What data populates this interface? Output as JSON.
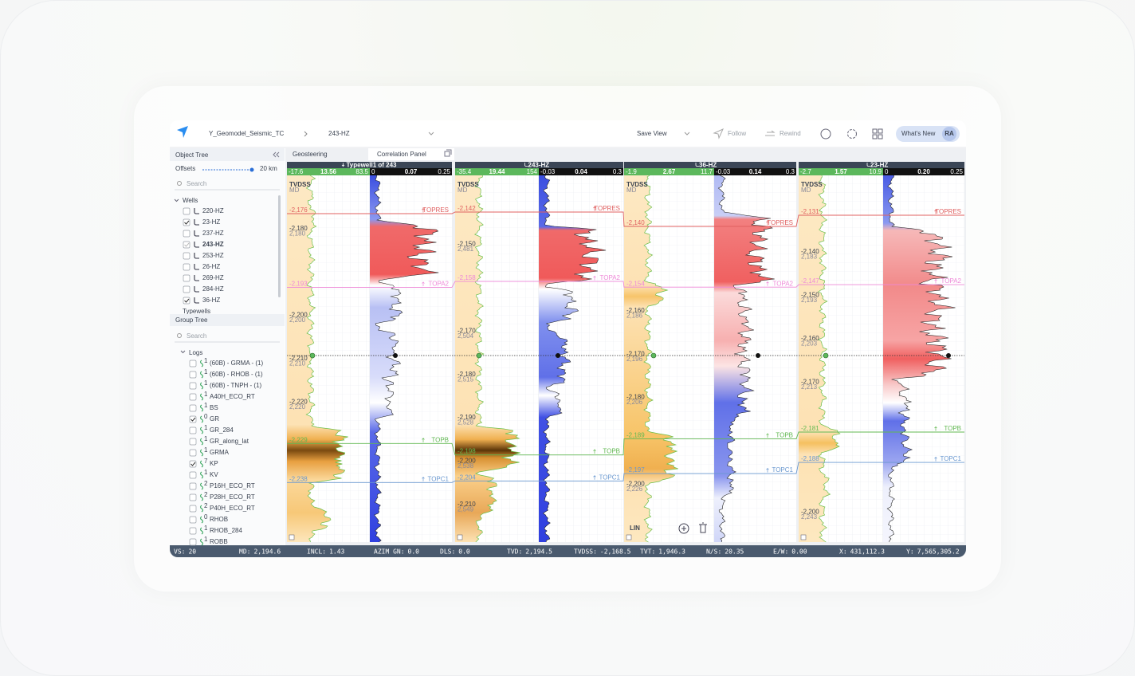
{
  "header": {
    "project": "Y_Geomodel_Seismic_TC",
    "well": "243-HZ",
    "save_view": "Save View",
    "follow": "Follow",
    "rewind": "Rewind",
    "whats_new": "What's New",
    "avatar": "RA"
  },
  "sidebar": {
    "object_tree": "Object Tree",
    "offsets": "Offsets",
    "offsets_value": "20 km",
    "search": "Search",
    "wells_group": "Wells",
    "wells": [
      {
        "name": "220-HZ",
        "checked": false,
        "selected": false
      },
      {
        "name": "23-HZ",
        "checked": true,
        "selected": false
      },
      {
        "name": "237-HZ",
        "checked": false,
        "selected": false
      },
      {
        "name": "243-HZ",
        "checked": true,
        "selected": true
      },
      {
        "name": "253-HZ",
        "checked": false,
        "selected": false
      },
      {
        "name": "26-HZ",
        "checked": false,
        "selected": false
      },
      {
        "name": "269-HZ",
        "checked": false,
        "selected": false
      },
      {
        "name": "284-HZ",
        "checked": false,
        "selected": false
      },
      {
        "name": "36-HZ",
        "checked": true,
        "selected": false
      }
    ],
    "typewells_group": "Typewells",
    "group_tree": "Group Tree",
    "group_search": "Search",
    "logs_group": "Logs",
    "logs": [
      {
        "name": "(60B) - GRMA - (1)",
        "count": "1",
        "checked": false
      },
      {
        "name": "(60B) - RHOB - (1)",
        "count": "1",
        "checked": false
      },
      {
        "name": "(60B) - TNPH - (1)",
        "count": "1",
        "checked": false
      },
      {
        "name": "A40H_ECO_RT",
        "count": "1",
        "checked": false
      },
      {
        "name": "BS",
        "count": "1",
        "checked": false
      },
      {
        "name": "GR",
        "count": "0",
        "checked": true
      },
      {
        "name": "GR_284",
        "count": "1",
        "checked": false
      },
      {
        "name": "GR_along_lat",
        "count": "1",
        "checked": false
      },
      {
        "name": "GRMA",
        "count": "1",
        "checked": false
      },
      {
        "name": "KP",
        "count": "7",
        "checked": true
      },
      {
        "name": "KV",
        "count": "1",
        "checked": false
      },
      {
        "name": "P16H_ECO_RT",
        "count": "2",
        "checked": false
      },
      {
        "name": "P28H_ECO_RT",
        "count": "2",
        "checked": false
      },
      {
        "name": "P40H_ECO_RT",
        "count": "2",
        "checked": false
      },
      {
        "name": "RHOB",
        "count": "0",
        "checked": false
      },
      {
        "name": "RHOB_284",
        "count": "1",
        "checked": false
      },
      {
        "name": "ROBB",
        "count": "1",
        "checked": false
      }
    ]
  },
  "tabs": [
    "Geosteering",
    "Correlation Panel"
  ],
  "track_labels": {
    "tvdss": "TVDSS",
    "md": "MD"
  },
  "tops": [
    {
      "name": "TOPRES",
      "color": "#e06060"
    },
    {
      "name": "TOPA2",
      "color": "#ee88d8"
    },
    {
      "name": "TOPB",
      "color": "#62b852"
    },
    {
      "name": "TOPC1",
      "color": "#6a98d0"
    }
  ],
  "panels": [
    {
      "title": "Typewell1 of 243",
      "gr_scale": [
        "-17.6",
        "13.56",
        "83.5"
      ],
      "res_scale": [
        "0",
        "0.07",
        "0.25"
      ],
      "top_depths": [
        {
          "value": -2176,
          "label": "-2,176"
        },
        {
          "value": -2193,
          "label": "-2,193"
        },
        {
          "value": -2229,
          "label": "-2,229"
        },
        {
          "value": -2238,
          "label": "-2,238"
        }
      ],
      "depths": [
        {
          "tvdss": {
            "value": -2180,
            "label": "-2,180"
          },
          "md": "2,180"
        },
        {
          "tvdss": {
            "value": -2200,
            "label": "-2,200"
          },
          "md": "2,200"
        },
        {
          "tvdss": {
            "value": -2210,
            "label": "-2,210"
          },
          "md": "2,210"
        },
        {
          "tvdss": {
            "value": -2220,
            "label": "-2,220"
          },
          "md": "2,220"
        }
      ]
    },
    {
      "title": "243-HZ",
      "gr_scale": [
        "-35.4",
        "19.44",
        "154"
      ],
      "res_scale": [
        "-0.03",
        "0.04",
        "0.3"
      ],
      "top_depths": [
        {
          "value": -2142,
          "label": "-2,142"
        },
        {
          "value": -2158,
          "label": "-2,158"
        },
        {
          "value": -2198,
          "label": "-2,198"
        },
        {
          "value": -2204,
          "label": "-2,204"
        }
      ],
      "depths": [
        {
          "tvdss": {
            "value": -2150,
            "label": "-2,150"
          },
          "md": "2,481"
        },
        {
          "tvdss": {
            "value": -2170,
            "label": "-2,170"
          },
          "md": "2,504"
        },
        {
          "tvdss": {
            "value": -2180,
            "label": "-2,180"
          },
          "md": "2,515"
        },
        {
          "tvdss": {
            "value": -2190,
            "label": "-2,190"
          },
          "md": "2,528"
        },
        {
          "tvdss": {
            "value": -2200,
            "label": "-2,200"
          },
          "md": "2,538"
        },
        {
          "tvdss": {
            "value": -2210,
            "label": "-2,210"
          },
          "md": "2,549"
        }
      ]
    },
    {
      "title": "36-HZ",
      "gr_scale": [
        "-1.9",
        "2.67",
        "11.7"
      ],
      "res_scale": [
        "-0.03",
        "0.14",
        "0.3"
      ],
      "scale_mode": "LIN",
      "top_depths": [
        {
          "value": -2140,
          "label": "-2,140"
        },
        {
          "value": -2154,
          "label": "-2,154"
        },
        {
          "value": -2189,
          "label": "-2,189"
        },
        {
          "value": -2197,
          "label": "-2,197"
        }
      ],
      "depths": [
        {
          "tvdss": {
            "value": -2160,
            "label": "-2,160"
          },
          "md": "2,186"
        },
        {
          "tvdss": {
            "value": -2170,
            "label": "-2,170"
          },
          "md": "2,196"
        },
        {
          "tvdss": {
            "value": -2180,
            "label": "-2,180"
          },
          "md": "2,206"
        },
        {
          "tvdss": {
            "value": -2200,
            "label": "-2,200"
          },
          "md": "2,226"
        }
      ]
    },
    {
      "title": "23-HZ",
      "gr_scale": [
        "-2.7",
        "1.57",
        "10.9"
      ],
      "res_scale": [
        "0",
        "0.20",
        "0.25"
      ],
      "top_depths": [
        {
          "value": -2131,
          "label": "-2,131"
        },
        {
          "value": -2147,
          "label": "-2,147"
        },
        {
          "value": -2181,
          "label": "-2,181"
        },
        {
          "value": -2188,
          "label": "-2,188"
        }
      ],
      "depths": [
        {
          "tvdss": {
            "value": -2140,
            "label": "-2,140"
          },
          "md": "2,183"
        },
        {
          "tvdss": {
            "value": -2150,
            "label": "-2,150"
          },
          "md": "2,193"
        },
        {
          "tvdss": {
            "value": -2160,
            "label": "-2,160"
          },
          "md": "2,203"
        },
        {
          "tvdss": {
            "value": -2170,
            "label": "-2,170"
          },
          "md": "2,213"
        },
        {
          "tvdss": {
            "value": -2200,
            "label": "-2,200"
          },
          "md": "2,243"
        }
      ]
    }
  ],
  "status": [
    {
      "label": "VS:",
      "value": "20"
    },
    {
      "label": "MD:",
      "value": "2,194.6"
    },
    {
      "label": "INCL:",
      "value": "1.43"
    },
    {
      "label": "AZIM GN:",
      "value": "0.0"
    },
    {
      "label": "DLS:",
      "value": "0.0"
    },
    {
      "label": "TVD:",
      "value": "2,194.5"
    },
    {
      "label": "TVDSS:",
      "value": "-2,168.5"
    },
    {
      "label": "TVT:",
      "value": "1,946.3"
    },
    {
      "label": "N/S:",
      "value": "20.35"
    },
    {
      "label": "E/W:",
      "value": "0.00"
    },
    {
      "label": "X:",
      "value": "431,112.3"
    },
    {
      "label": "Y:",
      "value": "7,565,305.2"
    }
  ]
}
